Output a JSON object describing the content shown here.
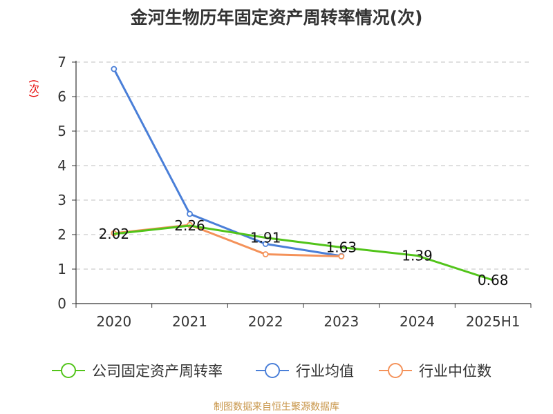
{
  "chart_data": {
    "type": "line",
    "title": "金河生物历年固定资产周转率情况(次)",
    "ylabel": "(次)",
    "source": "制图数据来自恒生聚源数据库",
    "categories": [
      "2020",
      "2021",
      "2022",
      "2023",
      "2024",
      "2025H1"
    ],
    "ylim": [
      0,
      7
    ],
    "yticks": [
      "0",
      "1",
      "2",
      "3",
      "4",
      "5",
      "6",
      "7"
    ],
    "grid": true,
    "legend_position": "bottom",
    "series": [
      {
        "name": "公司固定资产周转率",
        "color": "#52c41a",
        "values": [
          2.02,
          2.26,
          1.91,
          1.63,
          1.39,
          0.68
        ],
        "labels": [
          "2.02",
          "2.26",
          "1.91",
          "1.63",
          "1.39",
          "0.68"
        ]
      },
      {
        "name": "行业均值",
        "color": "#4a7fd8",
        "values": [
          6.8,
          2.6,
          1.73,
          1.38,
          null,
          null
        ]
      },
      {
        "name": "行业中位数",
        "color": "#f4925a",
        "values": [
          2.04,
          2.28,
          1.43,
          1.37,
          null,
          null
        ]
      }
    ]
  }
}
